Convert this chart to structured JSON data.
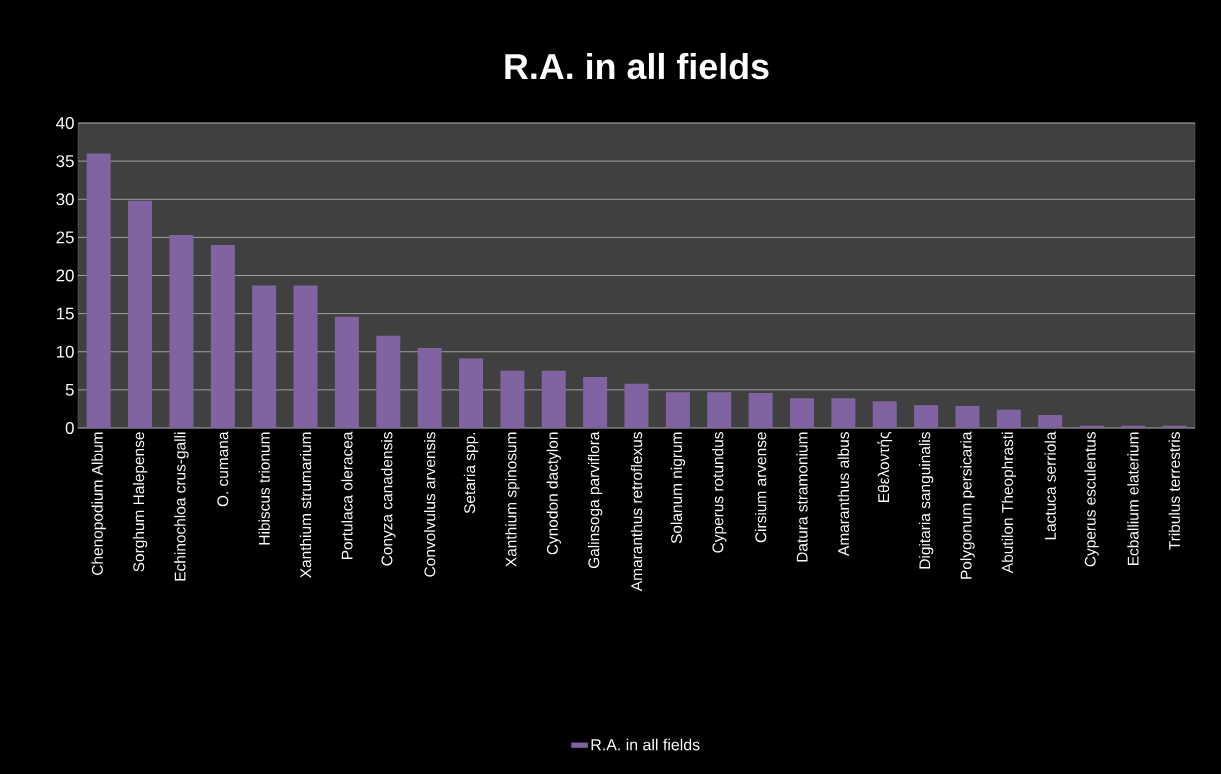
{
  "chart_data": {
    "type": "bar",
    "title": "R.A. in all fields",
    "categories": [
      "Chenopodium  Album",
      "Sorghum Halepense",
      "Echinochloa crus-galli",
      "O. cumana",
      "Hibiscus trionum",
      "Xanthium strumarium",
      "Portulaca oleracea",
      "Conyza canadensis",
      "Convolvulus arvensis",
      "Setaria spp.",
      "Xanthium spinosum",
      "Cynodon dactylon",
      "Galinsoga parviflora",
      "Amaranthus retroflexus",
      "Solanum nigrum",
      "Cyperus rotundus",
      "Cirsium arvense",
      "Datura stramonium",
      "Amaranthus albus",
      "Εθελοντής",
      "Digitaria sanguinalis",
      "Polygonum persicaria",
      "Abutilon Theophrasti",
      "Lactuca serriola",
      "Cyperus esculentus",
      "Ecballium elaterium",
      "Tribulus terrestris"
    ],
    "series": [
      {
        "name": "R.A. in all fields",
        "color": "#8064a2",
        "values": [
          36,
          29.8,
          25.3,
          24,
          18.7,
          18.7,
          14.6,
          12.1,
          10.5,
          9.1,
          7.5,
          7.5,
          6.7,
          5.8,
          4.7,
          4.7,
          4.6,
          3.9,
          3.9,
          3.5,
          3,
          2.9,
          2.4,
          1.7,
          0.3,
          0.3,
          0.3
        ]
      }
    ],
    "ylim": [
      0,
      40
    ],
    "yticks": [
      0,
      5,
      10,
      15,
      20,
      25,
      30,
      35,
      40
    ],
    "grid": "y",
    "legend": "bottom"
  }
}
